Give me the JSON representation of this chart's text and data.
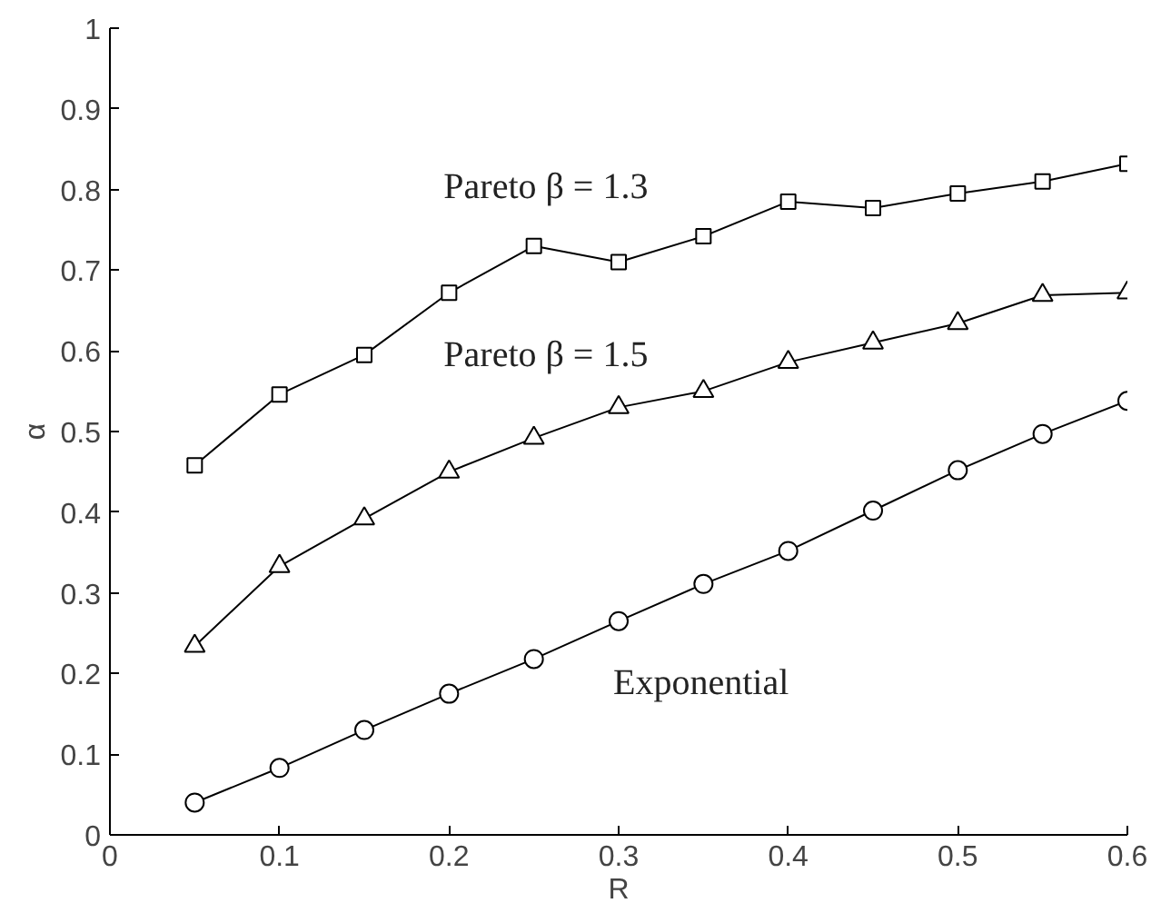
{
  "chart_data": {
    "type": "line",
    "xlabel": "R",
    "ylabel": "α",
    "x": [
      0.05,
      0.1,
      0.15,
      0.2,
      0.25,
      0.3,
      0.35,
      0.4,
      0.45,
      0.5,
      0.55,
      0.6
    ],
    "series": [
      {
        "name": "Pareto β = 1.3",
        "color": "#000000",
        "marker": "square",
        "values": [
          0.458,
          0.546,
          0.595,
          0.672,
          0.73,
          0.71,
          0.742,
          0.785,
          0.777,
          0.795,
          0.81,
          0.832
        ]
      },
      {
        "name": "Pareto β = 1.5",
        "color": "#000000",
        "marker": "triangle",
        "values": [
          0.234,
          0.333,
          0.392,
          0.45,
          0.492,
          0.53,
          0.55,
          0.586,
          0.61,
          0.634,
          0.669,
          0.672
        ]
      },
      {
        "name": "Exponential",
        "color": "#000000",
        "marker": "circle",
        "values": [
          0.04,
          0.083,
          0.13,
          0.175,
          0.218,
          0.265,
          0.311,
          0.352,
          0.402,
          0.452,
          0.497,
          0.538
        ]
      }
    ],
    "xlim": [
      0,
      0.6
    ],
    "ylim": [
      0,
      1
    ],
    "xticks": [
      0,
      0.1,
      0.2,
      0.3,
      0.4,
      0.5,
      0.6
    ],
    "yticks": [
      0,
      0.1,
      0.2,
      0.3,
      0.4,
      0.5,
      0.6,
      0.7,
      0.8,
      0.9,
      1
    ],
    "grid": false,
    "line_style": "solid"
  }
}
